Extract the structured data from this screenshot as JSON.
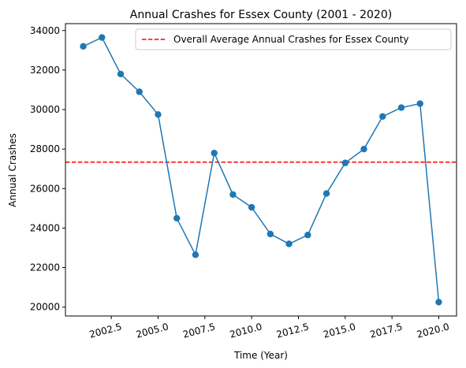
{
  "chart_data": {
    "type": "line",
    "title": "Annual Crashes for Essex County (2001 - 2020)",
    "xlabel": "Time (Year)",
    "ylabel": "Annual Crashes",
    "x": [
      2001,
      2002,
      2003,
      2004,
      2005,
      2006,
      2007,
      2008,
      2009,
      2010,
      2011,
      2012,
      2013,
      2014,
      2015,
      2016,
      2017,
      2018,
      2019,
      2020
    ],
    "series": [
      {
        "values": [
          33200,
          33650,
          31800,
          30900,
          29750,
          24500,
          22650,
          27800,
          25700,
          25050,
          23700,
          23200,
          23650,
          25750,
          27300,
          28000,
          29650,
          30100,
          30300,
          20250
        ],
        "color": "#1f77b4"
      }
    ],
    "reference_line": {
      "label": "Overall Average Annual Crashes for Essex County",
      "value": 27340,
      "color": "#ff0000",
      "style": "dashed"
    },
    "xlim": [
      2000.05,
      2020.95
    ],
    "ylim": [
      19550,
      34350
    ],
    "xticks": [
      2002.5,
      2005.0,
      2007.5,
      2010.0,
      2012.5,
      2015.0,
      2017.5,
      2020.0
    ],
    "xtick_labels": [
      "2002.5",
      "2005.0",
      "2007.5",
      "2010.0",
      "2012.5",
      "2015.0",
      "2017.5",
      "2020.0"
    ],
    "yticks": [
      20000,
      22000,
      24000,
      26000,
      28000,
      30000,
      32000,
      34000
    ],
    "ytick_labels": [
      "20000",
      "22000",
      "24000",
      "26000",
      "28000",
      "30000",
      "32000",
      "34000"
    ],
    "legend_position": "top-right",
    "grid": false
  }
}
